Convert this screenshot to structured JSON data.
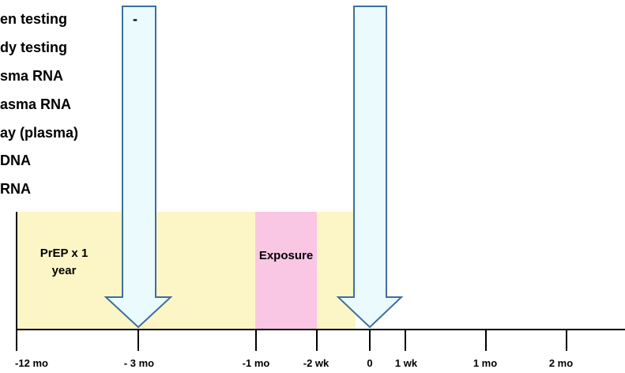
{
  "tests": [
    "en testing",
    "dy testing",
    "sma RNA",
    "asma RNA",
    "ay (plasma)",
    "DNA",
    "RNA"
  ],
  "bands": {
    "prep_label": "PrEP x 1 year",
    "exposure_label": "Exposure"
  },
  "arrow_note": "-",
  "timeline": {
    "ticks": [
      "-12 mo",
      "- 3 mo",
      "-1 mo",
      "-2 wk",
      "0",
      "1 wk",
      "1 mo",
      "2 mo"
    ]
  },
  "colors": {
    "prep_band": "#fcf6c6",
    "exposure_band": "#f9c6e4",
    "arrow_fill": "#eafafd",
    "arrow_stroke": "#3f6f9f"
  }
}
